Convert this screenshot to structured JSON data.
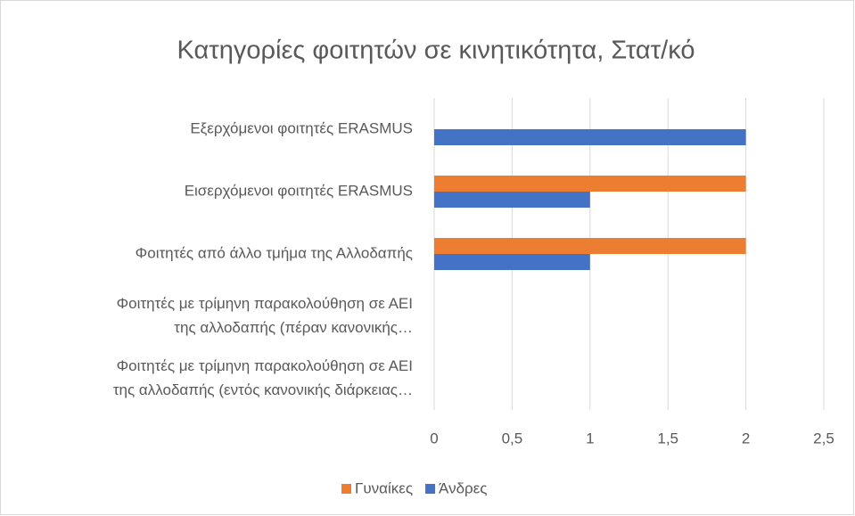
{
  "chart_data": {
    "type": "bar",
    "orientation": "horizontal",
    "title": "Κατηγορίες φοιτητών σε κινητικότητα, Στατ/κό",
    "categories": [
      [
        "Εξερχόμενοι φοιτητές ERASMUS"
      ],
      [
        "Εισερχόμενοι φοιτητές ERASMUS"
      ],
      [
        "Φοιτητές από άλλο τμήμα της Αλλοδαπής"
      ],
      [
        "Φοιτητές με τρίμηνη παρακολούθηση σε ΑΕΙ",
        "της αλλοδαπής (πέραν κανονικής…"
      ],
      [
        "Φοιτητές με τρίμηνη παρακολούθηση σε ΑΕΙ",
        "της αλλοδαπής (εντός κανονικής διάρκειας…"
      ]
    ],
    "series": [
      {
        "name": "Γυναίκες",
        "color": "#ed7d31",
        "values": [
          0,
          2,
          2,
          0,
          0
        ]
      },
      {
        "name": "Άνδρες",
        "color": "#4472c4",
        "values": [
          2,
          1,
          1,
          0,
          0
        ]
      }
    ],
    "xlim": [
      0,
      2.5
    ],
    "xticks": [
      0,
      {
        "value": 0.5,
        "label": "0,5"
      },
      1,
      {
        "value": 1.5,
        "label": "1,5"
      },
      2,
      {
        "value": 2.5,
        "label": "2,5"
      }
    ],
    "grid": true,
    "legend": "bottom"
  }
}
